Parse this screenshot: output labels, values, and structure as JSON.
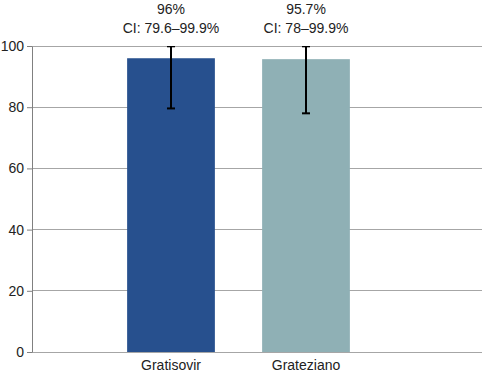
{
  "chart_data": {
    "type": "bar",
    "categories": [
      "Gratisovir",
      "Grateziano"
    ],
    "values": [
      96,
      95.7
    ],
    "value_labels": [
      "96%",
      "95.7%"
    ],
    "ci": [
      [
        79.6,
        99.9
      ],
      [
        78,
        99.9
      ]
    ],
    "ci_labels": [
      "CI: 79.6–99.9%",
      "CI: 78–99.9%"
    ],
    "colors": [
      "#27508e",
      "#8fb0b5"
    ],
    "ylim": [
      0,
      100
    ],
    "yticks": [
      0,
      20,
      40,
      60,
      80,
      100
    ],
    "grid": true,
    "data_labels": true
  }
}
